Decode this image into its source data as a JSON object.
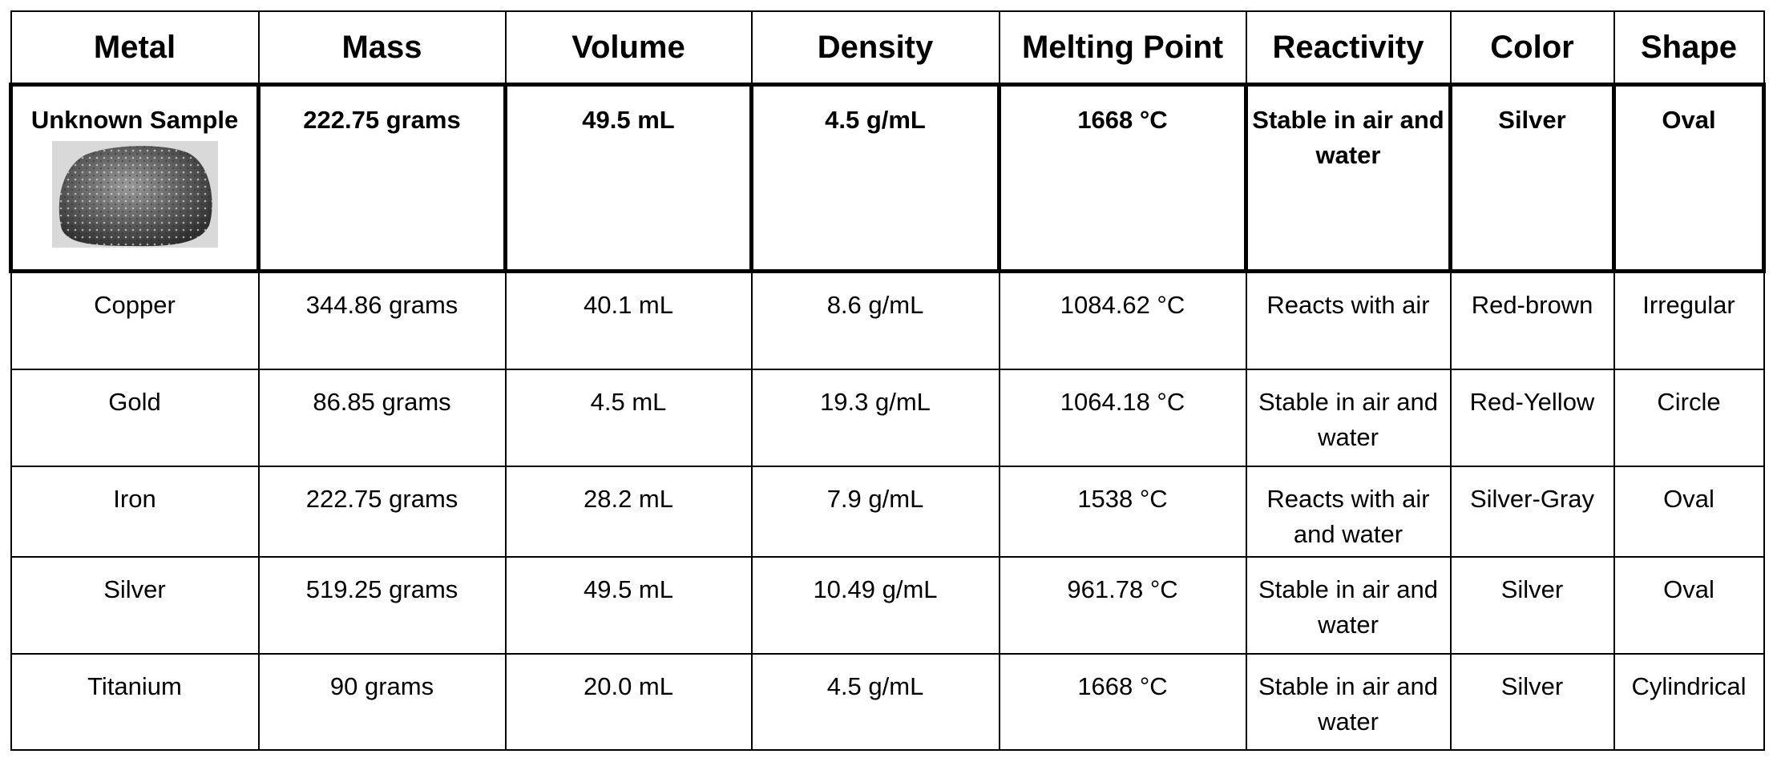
{
  "table": {
    "header": [
      "Metal",
      "Mass",
      "Volume",
      "Density",
      "Melting Point",
      "Reactivity",
      "Color",
      "Shape"
    ],
    "rows": [
      [
        "Unknown Sample",
        "222.75 grams",
        "49.5 mL",
        "4.5 g/mL",
        "1668 °C",
        "Stable in air and water",
        "Silver",
        "Oval"
      ],
      [
        "Copper",
        "344.86 grams",
        "40.1 mL",
        "8.6 g/mL",
        "1084.62 °C",
        "Reacts with air",
        "Red-brown",
        "Irregular"
      ],
      [
        "Gold",
        "86.85 grams",
        "4.5 mL",
        "19.3 g/mL",
        "1064.18 °C",
        "Stable in air and water",
        "Red-Yellow",
        "Circle"
      ],
      [
        "Iron",
        "222.75 grams",
        "28.2 mL",
        "7.9 g/mL",
        "1538 °C",
        "Reacts with air and water",
        "Silver-Gray",
        "Oval"
      ],
      [
        "Silver",
        "519.25 grams",
        "49.5 mL",
        "10.49 g/mL",
        "961.78 °C",
        "Stable in air and water",
        "Silver",
        "Oval"
      ],
      [
        "Titanium",
        "90 grams",
        "20.0 mL",
        "4.5 g/mL",
        "1668 °C",
        "Stable in air and water",
        "Silver",
        "Cylindrical"
      ]
    ]
  }
}
